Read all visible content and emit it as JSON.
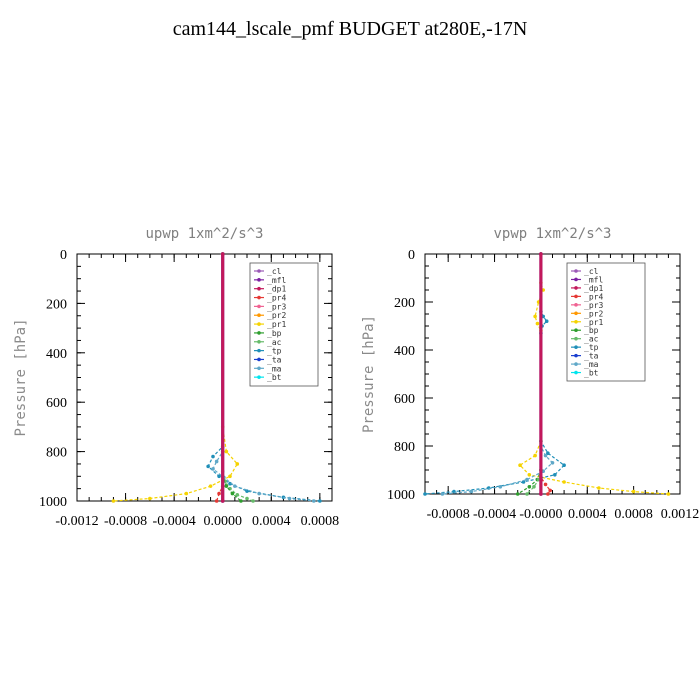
{
  "title": "cam144_lscale_pmf  BUDGET at280E,-17N",
  "legend_entries": [
    {
      "name": "_cl",
      "color": "#9b59b6"
    },
    {
      "name": "_mfl",
      "color": "#7b1fa2"
    },
    {
      "name": "_dp1",
      "color": "#c2185b"
    },
    {
      "name": "_pr4",
      "color": "#e53935"
    },
    {
      "name": "_pr3",
      "color": "#f06292"
    },
    {
      "name": "_pr2",
      "color": "#ff9800"
    },
    {
      "name": "_pr1",
      "color": "#f5d300"
    },
    {
      "name": "_bp",
      "color": "#2e9e2e"
    },
    {
      "name": "_ac",
      "color": "#66bb6a"
    },
    {
      "name": "_tp",
      "color": "#1f8fb8"
    },
    {
      "name": "_ta",
      "color": "#1a3fcf"
    },
    {
      "name": "_ma",
      "color": "#5fa8c8"
    },
    {
      "name": "_bt",
      "color": "#00e5ee"
    }
  ],
  "chart_data": [
    {
      "type": "line",
      "title": "upwp  1xm^2/s^3",
      "ylabel": "Pressure [hPa]",
      "xlabel": "",
      "xlim": [
        -0.0012,
        0.0009
      ],
      "ylim": [
        0,
        1000
      ],
      "y_inverted": true,
      "xticks": [
        -0.0012,
        -0.0008,
        -0.0004,
        0.0,
        0.0004,
        0.0008
      ],
      "xtick_labels": [
        "-0.0012",
        "-0.0008",
        "-0.0004",
        "0.0000",
        "0.0004",
        "0.0008"
      ],
      "yticks": [
        0,
        200,
        400,
        600,
        800,
        1000
      ],
      "ytick_labels": [
        "0",
        "200",
        "400",
        "600",
        "800",
        "1000"
      ],
      "series": [
        {
          "name": "_pr1",
          "color": "#f5d300",
          "points": [
            [
              0,
              0
            ],
            [
              0,
              700
            ],
            [
              3e-05,
              800
            ],
            [
              0.00012,
              850
            ],
            [
              6e-05,
              900
            ],
            [
              -0.0001,
              940
            ],
            [
              -0.0003,
              970
            ],
            [
              -0.0006,
              990
            ],
            [
              -0.0009,
              1000
            ]
          ]
        },
        {
          "name": "_tp",
          "color": "#1f8fb8",
          "points": [
            [
              0,
              0
            ],
            [
              0,
              780
            ],
            [
              -8e-05,
              820
            ],
            [
              -0.00012,
              860
            ],
            [
              -3e-05,
              900
            ],
            [
              6e-05,
              930
            ],
            [
              0.0002,
              960
            ],
            [
              0.0005,
              985
            ],
            [
              0.0008,
              1000
            ]
          ]
        },
        {
          "name": "_ma",
          "color": "#5fa8c8",
          "points": [
            [
              0,
              0
            ],
            [
              0,
              800
            ],
            [
              -5e-05,
              840
            ],
            [
              -8e-05,
              870
            ],
            [
              1e-05,
              905
            ],
            [
              0.0001,
              940
            ],
            [
              0.0003,
              970
            ],
            [
              0.00055,
              990
            ],
            [
              0.00075,
              1000
            ]
          ]
        },
        {
          "name": "_ac",
          "color": "#66bb6a",
          "points": [
            [
              0,
              0
            ],
            [
              0,
              880
            ],
            [
              2e-05,
              920
            ],
            [
              6e-05,
              950
            ],
            [
              0.00012,
              975
            ],
            [
              0.0002,
              990
            ],
            [
              0.00025,
              1000
            ]
          ]
        },
        {
          "name": "_bp",
          "color": "#2e9e2e",
          "points": [
            [
              0,
              0
            ],
            [
              0,
              900
            ],
            [
              3e-05,
              940
            ],
            [
              8e-05,
              970
            ],
            [
              0.00015,
              1000
            ]
          ]
        },
        {
          "name": "_pr4",
          "color": "#e53935",
          "points": [
            [
              0,
              0
            ],
            [
              0,
              940
            ],
            [
              -3e-05,
              970
            ],
            [
              -5e-05,
              1000
            ]
          ]
        },
        {
          "name": "_cl",
          "color": "#9b59b6",
          "points": [
            [
              0,
              0
            ],
            [
              0,
              1000
            ]
          ]
        },
        {
          "name": "_mfl",
          "color": "#7b1fa2",
          "points": [
            [
              0,
              0
            ],
            [
              0,
              1000
            ]
          ]
        },
        {
          "name": "_dp1",
          "color": "#c2185b",
          "points": [
            [
              0,
              0
            ],
            [
              0,
              1000
            ]
          ]
        }
      ]
    },
    {
      "type": "line",
      "title": "vpwp  1xm^2/s^3",
      "ylabel": "Pressure [hPa]",
      "xlabel": "",
      "xlim": [
        -0.001,
        0.0012
      ],
      "ylim": [
        0,
        1000
      ],
      "y_inverted": true,
      "xticks": [
        -0.0008,
        -0.0004,
        0.0,
        0.0004,
        0.0008,
        0.0012
      ],
      "xtick_labels": [
        "-0.0008",
        "-0.0004",
        "-0.0000",
        "0.0004",
        "0.0008",
        "0.0012"
      ],
      "yticks": [
        0,
        200,
        400,
        600,
        800,
        1000
      ],
      "ytick_labels": [
        "0",
        "200",
        "400",
        "600",
        "800",
        "1000"
      ],
      "series": [
        {
          "name": "_pr1",
          "color": "#f5d300",
          "points": [
            [
              0,
              0
            ],
            [
              0,
              120
            ],
            [
              2e-05,
              150
            ],
            [
              -2e-05,
              200
            ],
            [
              -5e-05,
              260
            ],
            [
              -3e-05,
              290
            ],
            [
              0,
              320
            ],
            [
              0,
              780
            ],
            [
              -5e-05,
              840
            ],
            [
              -0.00018,
              880
            ],
            [
              -0.0001,
              920
            ],
            [
              0.0002,
              950
            ],
            [
              0.0005,
              975
            ],
            [
              0.0008,
              990
            ],
            [
              0.0011,
              1000
            ]
          ]
        },
        {
          "name": "_tp",
          "color": "#1f8fb8",
          "points": [
            [
              0,
              0
            ],
            [
              0,
              240
            ],
            [
              2e-05,
              260
            ],
            [
              5e-05,
              280
            ],
            [
              1e-05,
              300
            ],
            [
              0,
              330
            ],
            [
              0,
              780
            ],
            [
              6e-05,
              830
            ],
            [
              0.0002,
              880
            ],
            [
              0.00012,
              920
            ],
            [
              -0.00015,
              950
            ],
            [
              -0.00045,
              975
            ],
            [
              -0.00075,
              990
            ],
            [
              -0.001,
              1000
            ]
          ]
        },
        {
          "name": "_ma",
          "color": "#5fa8c8",
          "points": [
            [
              0,
              0
            ],
            [
              0,
              800
            ],
            [
              4e-05,
              840
            ],
            [
              0.0001,
              870
            ],
            [
              2e-05,
              905
            ],
            [
              -0.00012,
              940
            ],
            [
              -0.00035,
              970
            ],
            [
              -0.0006,
              990
            ],
            [
              -0.00085,
              1000
            ]
          ]
        },
        {
          "name": "_bp",
          "color": "#2e9e2e",
          "points": [
            [
              0,
              0
            ],
            [
              0,
              900
            ],
            [
              -3e-05,
              940
            ],
            [
              -0.0001,
              970
            ],
            [
              -0.0002,
              1000
            ]
          ]
        },
        {
          "name": "_ac",
          "color": "#66bb6a",
          "points": [
            [
              0,
              0
            ],
            [
              0,
              900
            ],
            [
              -2e-05,
              940
            ],
            [
              -6e-05,
              970
            ],
            [
              -0.00012,
              1000
            ]
          ]
        },
        {
          "name": "_pr4",
          "color": "#e53935",
          "points": [
            [
              0,
              0
            ],
            [
              0,
              930
            ],
            [
              4e-05,
              960
            ],
            [
              8e-05,
              985
            ],
            [
              6e-05,
              1000
            ]
          ]
        },
        {
          "name": "_cl",
          "color": "#9b59b6",
          "points": [
            [
              0,
              0
            ],
            [
              0,
              1000
            ]
          ]
        },
        {
          "name": "_mfl",
          "color": "#7b1fa2",
          "points": [
            [
              0,
              0
            ],
            [
              0,
              1000
            ]
          ]
        },
        {
          "name": "_dp1",
          "color": "#c2185b",
          "points": [
            [
              0,
              0
            ],
            [
              0,
              1000
            ]
          ]
        }
      ]
    }
  ]
}
